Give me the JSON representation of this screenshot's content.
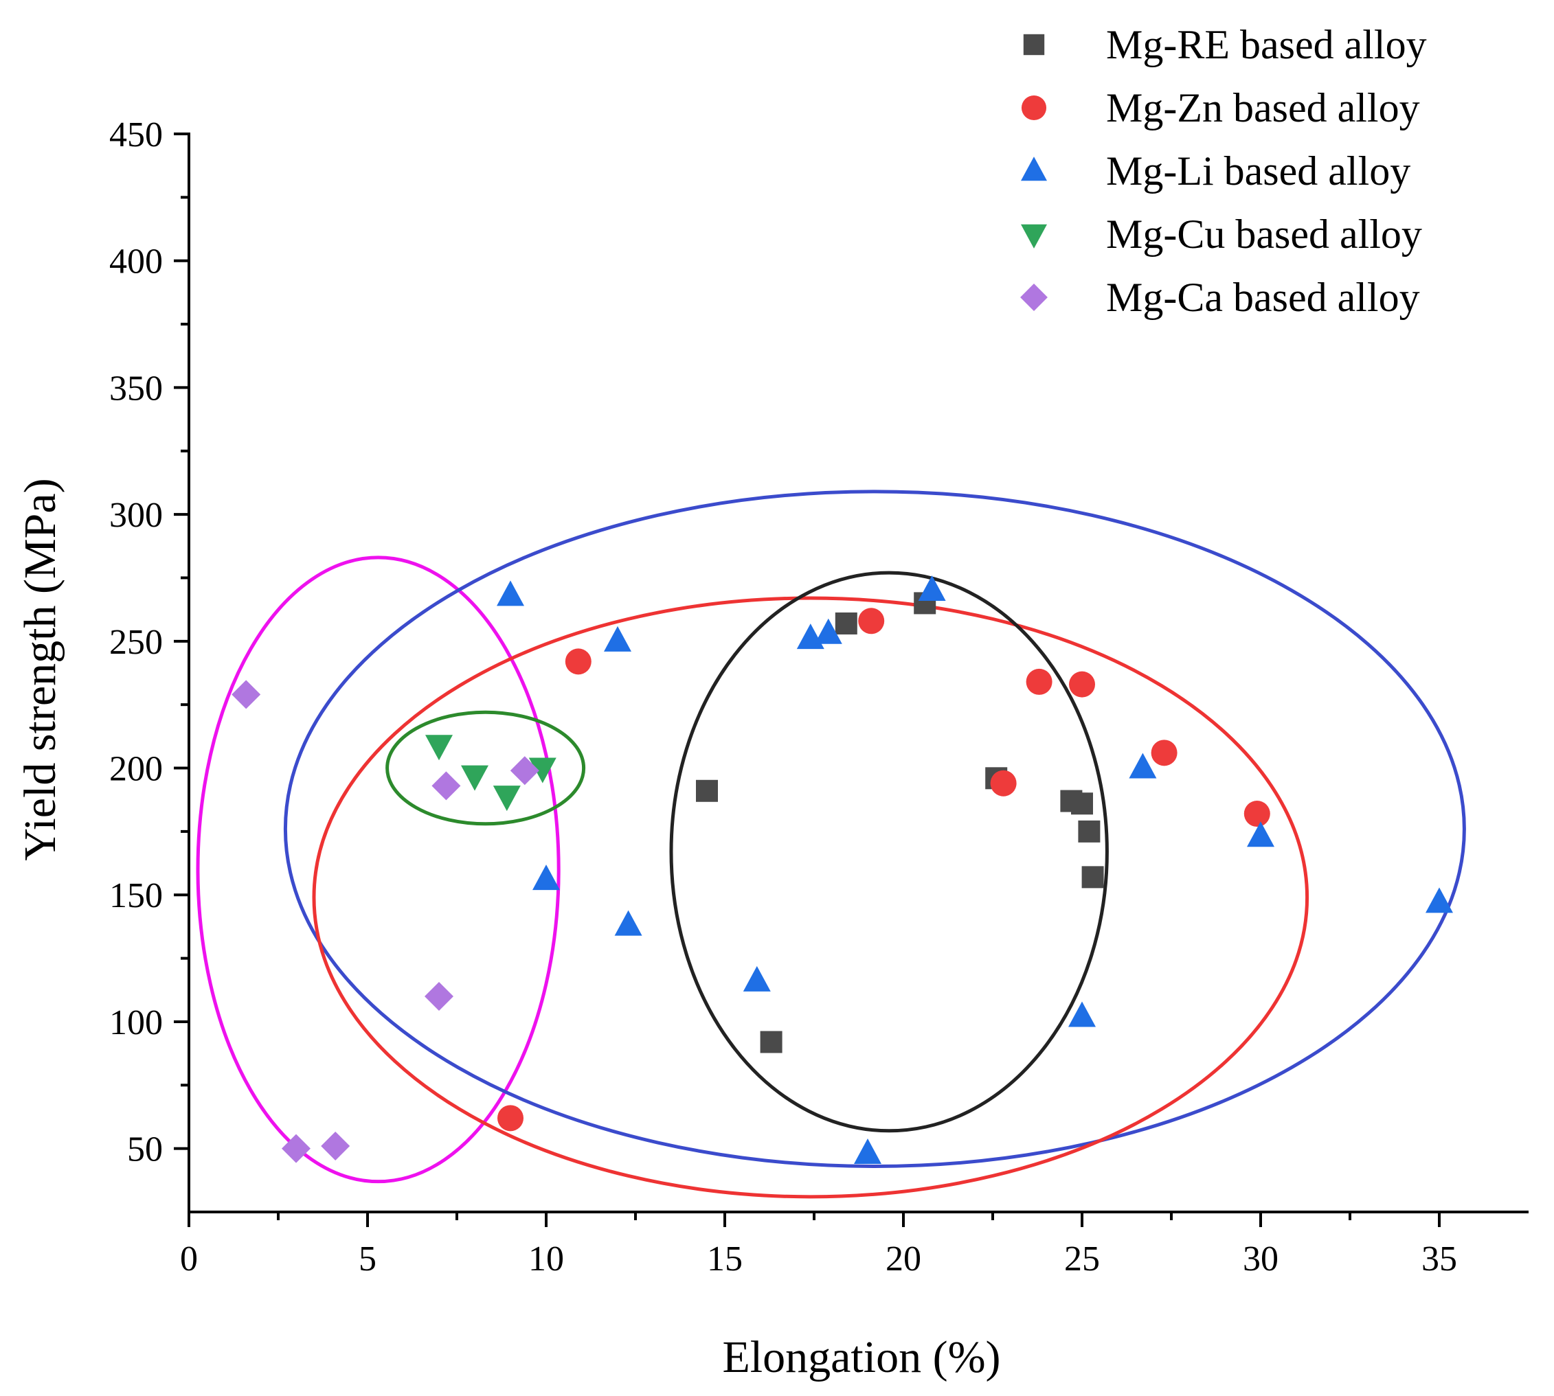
{
  "chart_data": {
    "type": "scatter",
    "title": "",
    "xlabel": "Elongation (%)",
    "ylabel": "Yield strength (MPa)",
    "xlim": [
      0,
      37.5
    ],
    "ylim": [
      25,
      450
    ],
    "xticks": [
      0,
      5,
      10,
      15,
      20,
      25,
      30,
      35
    ],
    "yticks": [
      50,
      100,
      150,
      200,
      250,
      300,
      350,
      400,
      450
    ],
    "grid": false,
    "legend_position": "top-right",
    "series": [
      {
        "name": "Mg-RE based alloy",
        "marker": "square",
        "color": "#4a4a4a",
        "points": [
          [
            14.5,
            191
          ],
          [
            16.3,
            92
          ],
          [
            18.4,
            257
          ],
          [
            20.6,
            265
          ],
          [
            22.6,
            196
          ],
          [
            24.7,
            187
          ],
          [
            25.0,
            186
          ],
          [
            25.2,
            175
          ],
          [
            25.3,
            157
          ]
        ]
      },
      {
        "name": "Mg-Zn based alloy",
        "marker": "circle",
        "color": "#ee3b3b",
        "points": [
          [
            9.0,
            62
          ],
          [
            10.9,
            242
          ],
          [
            19.1,
            258
          ],
          [
            22.8,
            194
          ],
          [
            23.8,
            234
          ],
          [
            25.0,
            233
          ],
          [
            27.3,
            206
          ],
          [
            29.9,
            182
          ]
        ]
      },
      {
        "name": "Mg-Li based alloy",
        "marker": "triangle-up",
        "color": "#1f6fe5",
        "points": [
          [
            9.0,
            268
          ],
          [
            10.0,
            156
          ],
          [
            12.0,
            250
          ],
          [
            12.3,
            138
          ],
          [
            15.9,
            116
          ],
          [
            17.4,
            251
          ],
          [
            17.9,
            253
          ],
          [
            19.0,
            48
          ],
          [
            20.8,
            270
          ],
          [
            25.0,
            102
          ],
          [
            26.7,
            200
          ],
          [
            30.0,
            173
          ],
          [
            35.0,
            147
          ]
        ]
      },
      {
        "name": "Mg-Cu based alloy",
        "marker": "triangle-down",
        "color": "#2fa55a",
        "points": [
          [
            7.0,
            209
          ],
          [
            8.0,
            197
          ],
          [
            8.9,
            189
          ],
          [
            9.9,
            200
          ]
        ]
      },
      {
        "name": "Mg-Ca based alloy",
        "marker": "diamond",
        "color": "#b077e0",
        "points": [
          [
            1.6,
            229
          ],
          [
            3.0,
            50
          ],
          [
            4.1,
            51
          ],
          [
            7.0,
            110
          ],
          [
            7.2,
            193
          ],
          [
            9.4,
            199
          ]
        ]
      }
    ],
    "annotations": [
      {
        "shape": "ellipse",
        "color": "#ee11ee",
        "center": [
          5.3,
          160
        ],
        "radii": [
          5.05,
          123
        ]
      },
      {
        "shape": "ellipse",
        "color": "#3b4bcc",
        "center": [
          19.2,
          176
        ],
        "radii": [
          16.5,
          133
        ]
      },
      {
        "shape": "ellipse",
        "color": "#ee3333",
        "center": [
          17.4,
          149
        ],
        "radii": [
          13.9,
          118
        ]
      },
      {
        "shape": "ellipse",
        "color": "#222222",
        "center": [
          19.6,
          167
        ],
        "radii": [
          6.1,
          110
        ]
      },
      {
        "shape": "ellipse",
        "color": "#2c8a2c",
        "center": [
          8.3,
          200
        ],
        "radii": [
          2.75,
          22
        ]
      }
    ]
  }
}
